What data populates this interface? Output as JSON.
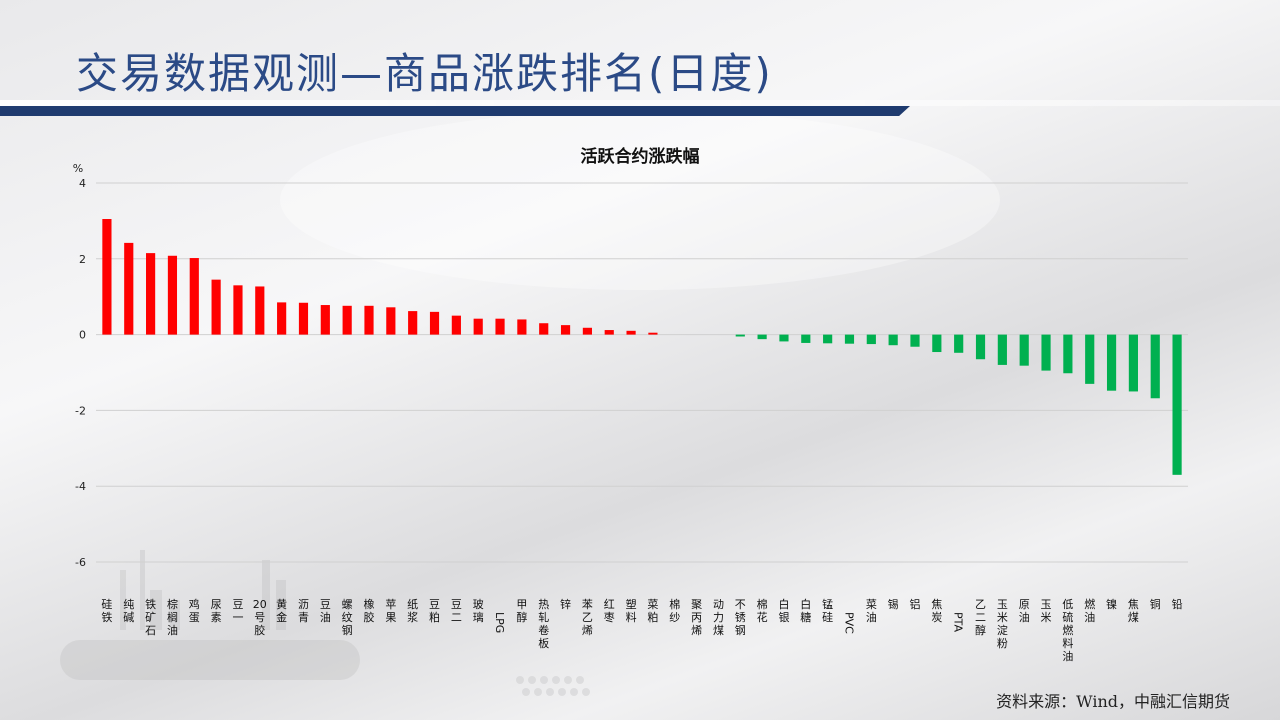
{
  "page": {
    "title": "交易数据观测—商品涨跌排名(日度)",
    "source": "资料来源：Wind，中融汇信期货"
  },
  "colors": {
    "up": "#ff0000",
    "down": "#00b050",
    "title": "#2b4a86",
    "rule": "#1f3b6f"
  },
  "chart_data": {
    "type": "bar",
    "title": "活跃合约涨跌幅",
    "ylabel": "%",
    "ylim": [
      -6,
      4
    ],
    "yticks": [
      4,
      2,
      0,
      -2,
      -4,
      -6
    ],
    "grid": true,
    "categories": [
      "硅铁",
      "纯碱",
      "铁矿石",
      "棕榈油",
      "鸡蛋",
      "尿素",
      "豆一",
      "20号胶",
      "黄金",
      "沥青",
      "豆油",
      "螺纹钢",
      "橡胶",
      "苹果",
      "纸浆",
      "豆粕",
      "豆二",
      "玻璃",
      "LPG",
      "甲醇",
      "热轧卷板",
      "锌",
      "苯乙烯",
      "红枣",
      "塑料",
      "菜粕",
      "棉纱",
      "聚丙烯",
      "动力煤",
      "不锈钢",
      "棉花",
      "白银",
      "白糖",
      "锰硅",
      "PVC",
      "菜油",
      "锡",
      "铝",
      "焦炭",
      "PTA",
      "乙二醇",
      "玉米淀粉",
      "原油",
      "玉米",
      "低硫燃料油",
      "燃油",
      "镍",
      "焦煤",
      "铜",
      "铅"
    ],
    "values": [
      3.05,
      2.42,
      2.15,
      2.08,
      2.02,
      1.45,
      1.3,
      1.27,
      0.85,
      0.84,
      0.78,
      0.76,
      0.76,
      0.72,
      0.62,
      0.6,
      0.5,
      0.42,
      0.42,
      0.4,
      0.3,
      0.25,
      0.18,
      0.12,
      0.1,
      0.05,
      0,
      0,
      0,
      -0.05,
      -0.12,
      -0.18,
      -0.22,
      -0.23,
      -0.24,
      -0.25,
      -0.28,
      -0.32,
      -0.46,
      -0.48,
      -0.65,
      -0.8,
      -0.82,
      -0.95,
      -1.02,
      -1.3,
      -1.48,
      -1.5,
      -1.68,
      -3.7
    ]
  }
}
